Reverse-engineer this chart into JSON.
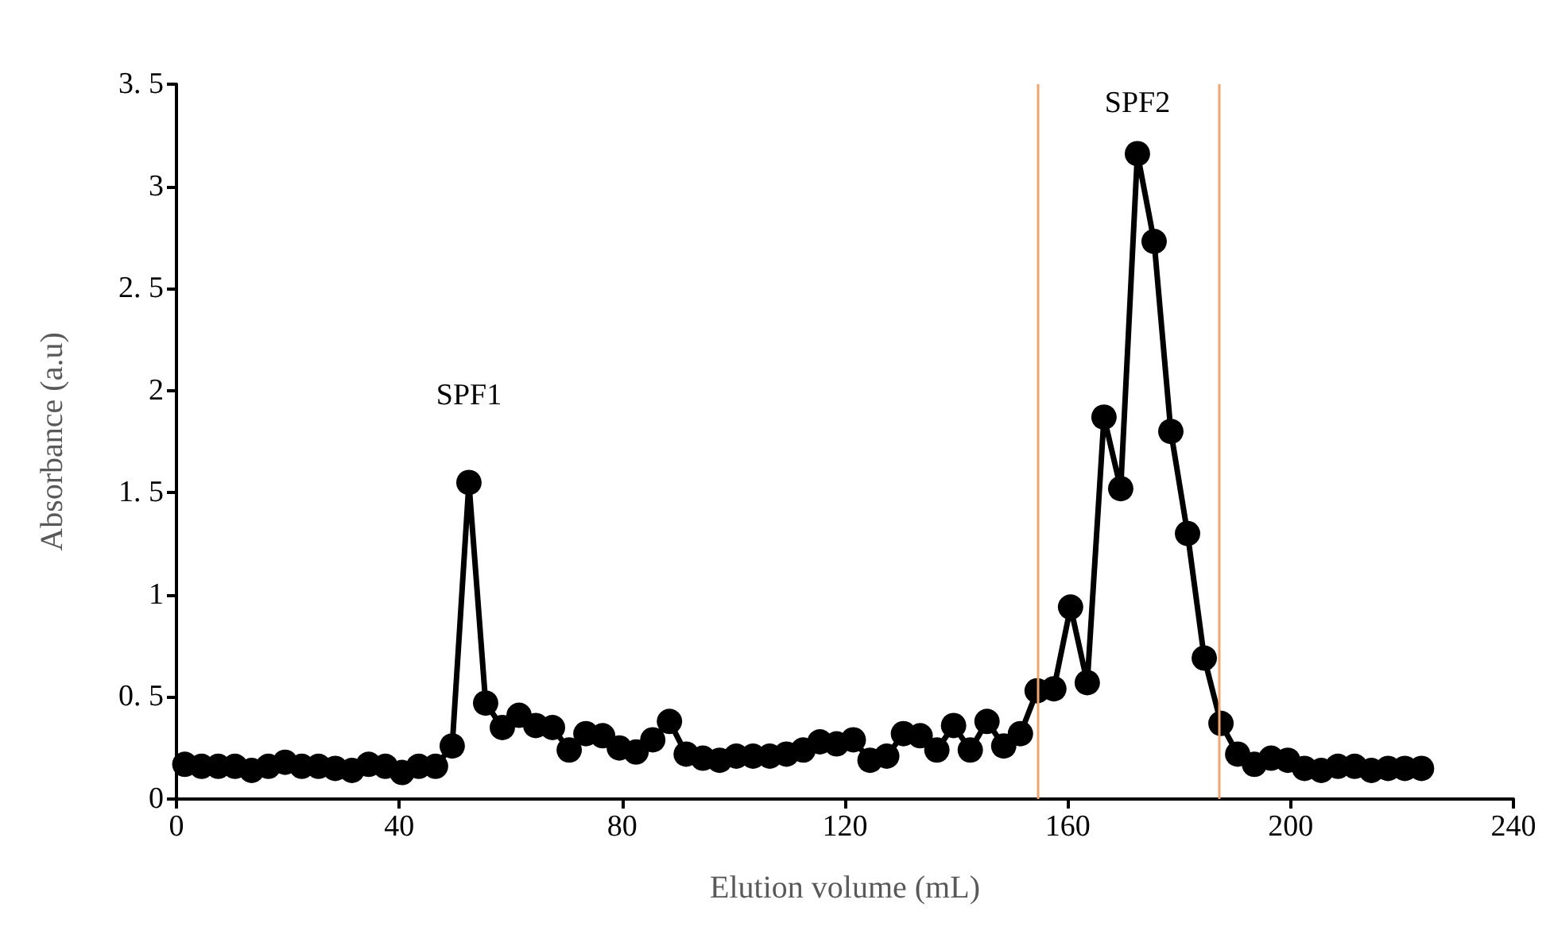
{
  "chart_data": {
    "type": "line",
    "xlabel": "Elution volume (mL)",
    "ylabel": "Absorbance (a.u)",
    "x": [
      1.5,
      4.5,
      7.5,
      10.5,
      13.5,
      16.5,
      19.5,
      22.5,
      25.5,
      28.5,
      31.5,
      34.5,
      37.5,
      40.5,
      43.5,
      46.5,
      49.5,
      52.5,
      55.5,
      58.5,
      61.5,
      64.5,
      67.5,
      70.5,
      73.5,
      76.5,
      79.5,
      82.5,
      85.5,
      88.5,
      91.5,
      94.5,
      97.5,
      100.5,
      103.5,
      106.5,
      109.5,
      112.5,
      115.5,
      118.5,
      121.5,
      124.5,
      127.5,
      130.5,
      133.5,
      136.5,
      139.5,
      142.5,
      145.5,
      148.5,
      151.5,
      154.5,
      157.5,
      160.5,
      163.5,
      166.5,
      169.5,
      172.5,
      175.5,
      178.5,
      181.5,
      184.5,
      187.5,
      190.5,
      193.5,
      196.5,
      199.5,
      202.5,
      205.5,
      208.5,
      211.5,
      214.5,
      217.5,
      220.5,
      223.5
    ],
    "series": [
      {
        "color": "#000000",
        "values": [
          0.17,
          0.16,
          0.16,
          0.16,
          0.14,
          0.16,
          0.18,
          0.16,
          0.16,
          0.15,
          0.14,
          0.17,
          0.16,
          0.13,
          0.16,
          0.16,
          0.26,
          1.55,
          0.47,
          0.35,
          0.41,
          0.36,
          0.35,
          0.24,
          0.32,
          0.31,
          0.25,
          0.23,
          0.29,
          0.38,
          0.22,
          0.2,
          0.19,
          0.21,
          0.21,
          0.21,
          0.22,
          0.24,
          0.28,
          0.27,
          0.29,
          0.19,
          0.21,
          0.32,
          0.31,
          0.24,
          0.36,
          0.24,
          0.38,
          0.26,
          0.32,
          0.53,
          0.54,
          0.94,
          0.57,
          1.87,
          1.52,
          3.16,
          2.73,
          1.8,
          1.3,
          0.69,
          0.37,
          0.22,
          0.17,
          0.2,
          0.19,
          0.15,
          0.14,
          0.16,
          0.16,
          0.14,
          0.15,
          0.15,
          0.15
        ]
      }
    ],
    "xlim": [
      0,
      240
    ],
    "xticks": [
      0,
      40,
      80,
      120,
      160,
      200,
      240
    ],
    "ylim": [
      0,
      3.5
    ],
    "yticks": [
      0,
      {
        "value": 0.5,
        "label": "0. 5"
      },
      1,
      {
        "value": 1.5,
        "label": "1. 5"
      },
      2,
      {
        "value": 2.5,
        "label": "2. 5"
      },
      3,
      {
        "value": 3.5,
        "label": "3. 5"
      }
    ],
    "annotations": [
      {
        "text": "SPF1",
        "x": 52.5,
        "y": 1.55
      },
      {
        "text": "SPF2",
        "x": 172.5,
        "y": 3.16
      }
    ],
    "ref_lines": [
      {
        "axis": "x",
        "value": 154.5,
        "color": "#f4a36b"
      },
      {
        "axis": "x",
        "value": 187,
        "color": "#f4a36b"
      }
    ],
    "marker": "circle",
    "line_style": "solid",
    "grid": false
  }
}
